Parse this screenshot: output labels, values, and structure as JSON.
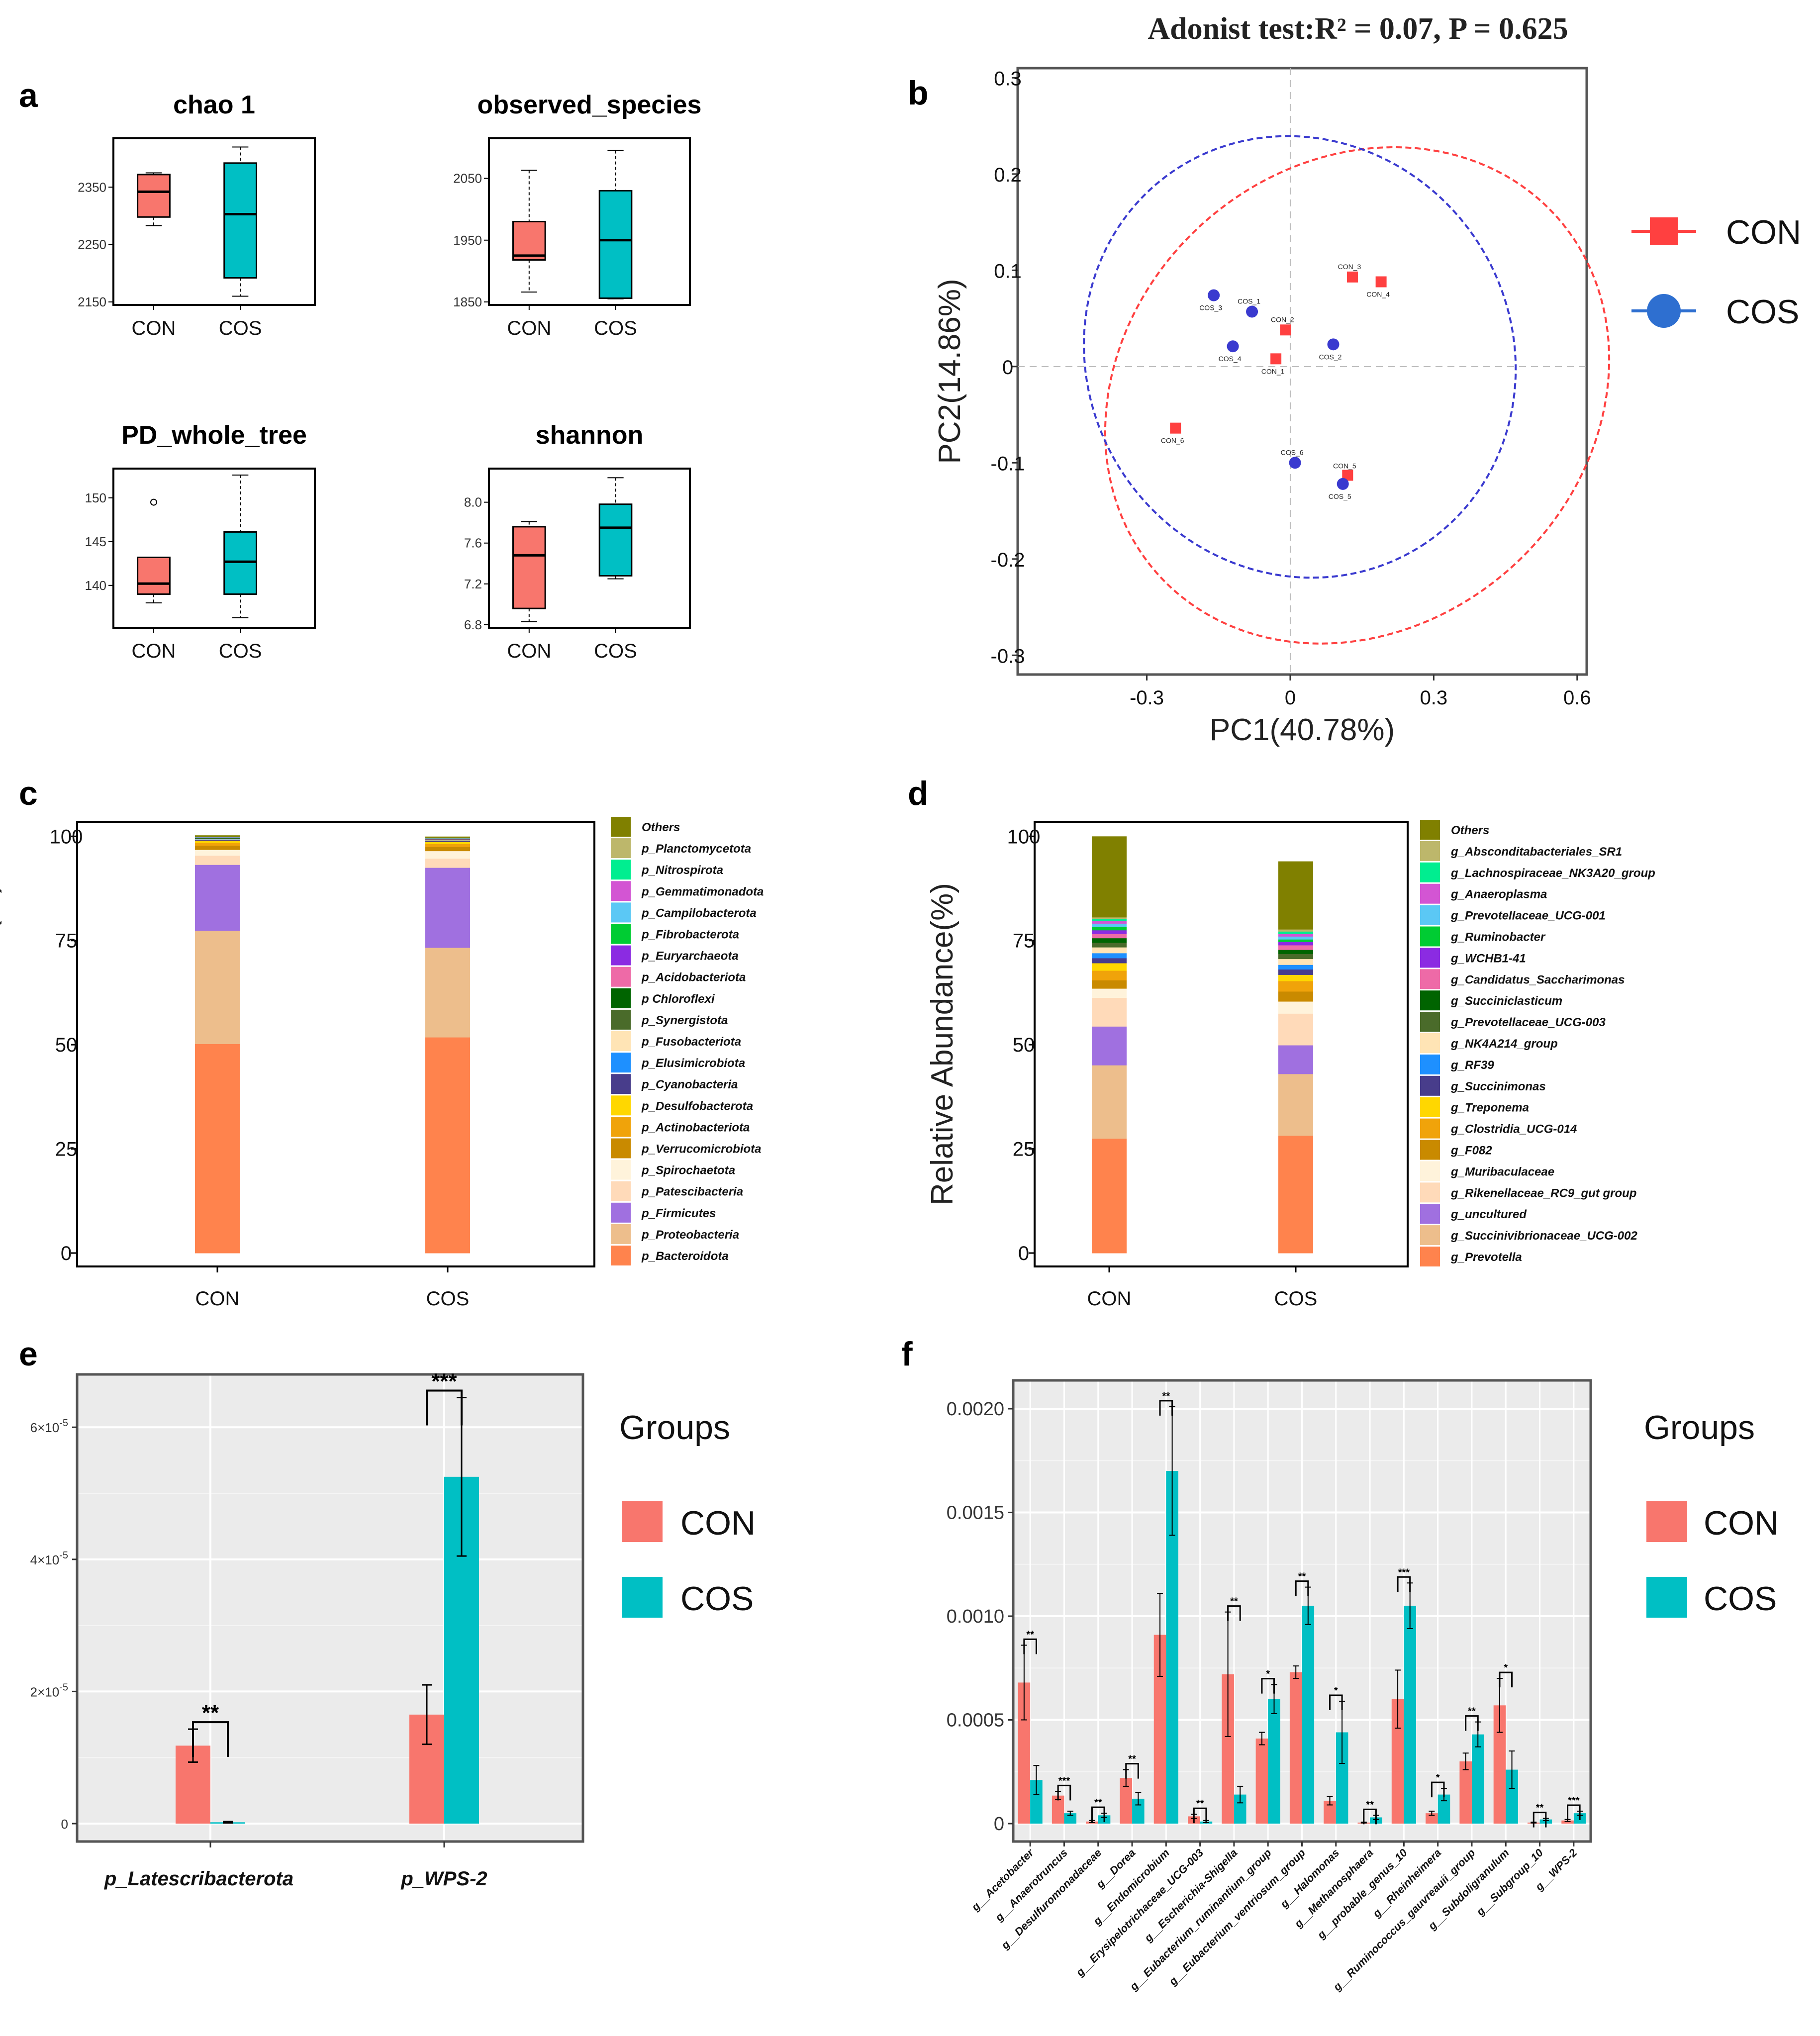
{
  "colors": {
    "con": "#F8766D",
    "cos": "#00BFC4",
    "pcon": "#FF4040",
    "pcos": "#3A3ACF"
  },
  "panels": {
    "a": "a",
    "b": "b",
    "c": "c",
    "d": "d",
    "e": "e",
    "f": "f"
  },
  "chart_data": [
    {
      "id": "a",
      "type": "box",
      "categories": [
        "CON",
        "COS"
      ],
      "subplots": [
        {
          "title": "chao 1",
          "ylim": [
            2150,
            2430
          ],
          "ticks": [
            2150,
            2250,
            2350
          ],
          "tick_labels": [
            "2150",
            "2250",
            "2350"
          ],
          "boxes": [
            {
              "group": "CON",
              "min": 2283,
              "q1": 2298,
              "median": 2342,
              "q3": 2372,
              "max": 2375,
              "outliers": []
            },
            {
              "group": "COS",
              "min": 2160,
              "q1": 2192,
              "median": 2303,
              "q3": 2392,
              "max": 2420,
              "outliers": []
            }
          ]
        },
        {
          "title": "observed_species",
          "ylim": [
            1850,
            2110
          ],
          "ticks": [
            1850,
            1950,
            2050
          ],
          "tick_labels": [
            "1850",
            "1950",
            "2050"
          ],
          "boxes": [
            {
              "group": "CON",
              "min": 1866,
              "q1": 1918,
              "median": 1925,
              "q3": 1980,
              "max": 2063,
              "outliers": []
            },
            {
              "group": "COS",
              "min": 1855,
              "q1": 1856,
              "median": 1950,
              "q3": 2030,
              "max": 2095,
              "outliers": []
            }
          ]
        },
        {
          "title": "PD_whole_tree",
          "ylim": [
            135.5,
            153
          ],
          "ticks": [
            140,
            145,
            150
          ],
          "tick_labels": [
            "140",
            "145",
            "150"
          ],
          "boxes": [
            {
              "group": "CON",
              "min": 138,
              "q1": 139,
              "median": 140.2,
              "q3": 143.2,
              "max": 143.2,
              "outliers": [
                149.5
              ]
            },
            {
              "group": "COS",
              "min": 136.3,
              "q1": 139,
              "median": 142.7,
              "q3": 146.1,
              "max": 152.6,
              "outliers": []
            }
          ]
        },
        {
          "title": "shannon",
          "ylim": [
            6.8,
            8.3
          ],
          "ticks": [
            6.8,
            7.2,
            7.6,
            8.0
          ],
          "tick_labels": [
            "6.8",
            "7.2",
            "7.6",
            "8.0"
          ],
          "boxes": [
            {
              "group": "CON",
              "min": 6.83,
              "q1": 6.96,
              "median": 7.48,
              "q3": 7.76,
              "max": 7.81,
              "outliers": []
            },
            {
              "group": "COS",
              "min": 7.25,
              "q1": 7.28,
              "median": 7.75,
              "q3": 7.98,
              "max": 8.24,
              "outliers": []
            }
          ]
        }
      ]
    },
    {
      "id": "b",
      "type": "scatter",
      "title": "Adonist test:R² = 0.07, P = 0.625",
      "xlabel": "PC1(40.78%)",
      "ylabel": "PC2(14.86%)",
      "xlim": [
        -0.57,
        0.62
      ],
      "ylim": [
        -0.32,
        0.31
      ],
      "xticks": [
        -0.3,
        0,
        0.3,
        0.6
      ],
      "xtick_labels": [
        "-0.3",
        "0",
        "0.3",
        "0.6"
      ],
      "yticks": [
        -0.3,
        -0.2,
        -0.1,
        0,
        0.1,
        0.2,
        0.3
      ],
      "ytick_labels": [
        "-0.3",
        "-0.2",
        "-0.1",
        "0",
        "0.1",
        "0.2",
        "0.3"
      ],
      "legend": [
        "CON",
        "COS"
      ],
      "points": [
        {
          "label": "CON_1",
          "group": "CON",
          "x": -0.03,
          "y": 0.008
        },
        {
          "label": "CON_2",
          "group": "CON",
          "x": -0.01,
          "y": 0.038
        },
        {
          "label": "CON_3",
          "group": "CON",
          "x": 0.13,
          "y": 0.093
        },
        {
          "label": "CON_4",
          "group": "CON",
          "x": 0.19,
          "y": 0.088
        },
        {
          "label": "CON_5",
          "group": "CON",
          "x": 0.12,
          "y": -0.113
        },
        {
          "label": "CON_6",
          "group": "CON",
          "x": -0.24,
          "y": -0.064
        },
        {
          "label": "COS_1",
          "group": "COS",
          "x": -0.08,
          "y": 0.057
        },
        {
          "label": "COS_2",
          "group": "COS",
          "x": 0.09,
          "y": 0.023
        },
        {
          "label": "COS_3",
          "group": "COS",
          "x": -0.16,
          "y": 0.074
        },
        {
          "label": "COS_4",
          "group": "COS",
          "x": -0.12,
          "y": 0.021
        },
        {
          "label": "COS_5",
          "group": "COS",
          "x": 0.11,
          "y": -0.122
        },
        {
          "label": "COS_6",
          "group": "COS",
          "x": 0.01,
          "y": -0.1
        }
      ],
      "ellipses": [
        {
          "group": "CON",
          "cx": 0.14,
          "cy": -0.03,
          "a": 0.56,
          "b": 0.24,
          "angle_deg": 42
        },
        {
          "group": "COS",
          "cx": 0.02,
          "cy": 0.01,
          "a": 0.47,
          "b": 0.22,
          "angle_deg": -56
        }
      ]
    },
    {
      "id": "c",
      "type": "stacked_bar",
      "categories": [
        "CON",
        "COS"
      ],
      "ylabel": "Relative Abundance(%)",
      "ylim": [
        0,
        100
      ],
      "yticks": [
        0,
        25,
        50,
        75,
        100
      ],
      "ytick_labels": [
        "0",
        "25",
        "50",
        "75",
        "100"
      ],
      "legend": [
        "Others",
        "p_Planctomycetota",
        "p_Nitrospirota",
        "p_Gemmatimonadota",
        "p_Campilobacterota",
        "p_Fibrobacterota",
        "p_Euryarchaeota",
        "p_Acidobacteriota",
        "p Chloroflexi",
        "p_Synergistota",
        "p_Fusobacteriota",
        "p_Elusimicrobiota",
        "p_Cyanobacteria",
        "p_Desulfobacterota",
        "p_Actinobacteriota",
        "p_Verrucomicrobiota",
        "p_Spirochaetota",
        "p_Patescibacteria",
        "p_Firmicutes",
        "p_Proteobacteria",
        "p_Bacteroidota"
      ],
      "legend_colors": [
        "#808000",
        "#BDB76B",
        "#00EE90",
        "#D355D3",
        "#5BC8F5",
        "#00CC33",
        "#8B2BE2",
        "#EE6AA7",
        "#006400",
        "#4A6B2A",
        "#FFE4B5",
        "#1E90FF",
        "#483D8B",
        "#FFD700",
        "#F0A30A",
        "#C98A00",
        "#FFF3DB",
        "#FFDAB9",
        "#A070E0",
        "#EDBE8C",
        "#FF834D"
      ],
      "series": [
        {
          "name": "p_Bacteroidota",
          "values": [
            50.2,
            51.8
          ]
        },
        {
          "name": "p_Proteobacteria",
          "values": [
            27.2,
            21.5
          ]
        },
        {
          "name": "p_Firmicutes",
          "values": [
            15.8,
            19.2
          ]
        },
        {
          "name": "p_Patescibacteria",
          "values": [
            2.2,
            2.2
          ]
        },
        {
          "name": "p_Spirochaetota",
          "values": [
            1.4,
            1.8
          ]
        },
        {
          "name": "p_Verrucomicrobiota",
          "values": [
            1.0,
            1.0
          ]
        },
        {
          "name": "p_Actinobacteriota",
          "values": [
            0.7,
            0.7
          ]
        },
        {
          "name": "p_Desulfobacterota",
          "values": [
            0.5,
            0.5
          ]
        },
        {
          "name": "p_Cyanobacteria",
          "values": [
            0.2,
            0.2
          ]
        },
        {
          "name": "p_Elusimicrobiota",
          "values": [
            0.1,
            0.1
          ]
        },
        {
          "name": "p_Fusobacteriota",
          "values": [
            0.1,
            0.1
          ]
        },
        {
          "name": "p_Synergistota",
          "values": [
            0.1,
            0.1
          ]
        },
        {
          "name": "p Chloroflexi",
          "values": [
            0.1,
            0.1
          ]
        },
        {
          "name": "p_Acidobacteriota",
          "values": [
            0.05,
            0.05
          ]
        },
        {
          "name": "p_Euryarchaeota",
          "values": [
            0.05,
            0.05
          ]
        },
        {
          "name": "p_Fibrobacterota",
          "values": [
            0.05,
            0.05
          ]
        },
        {
          "name": "p_Campilobacterota",
          "values": [
            0.05,
            0.05
          ]
        },
        {
          "name": "p_Gemmatimonadota",
          "values": [
            0.05,
            0.05
          ]
        },
        {
          "name": "p_Nitrospirota",
          "values": [
            0.05,
            0.05
          ]
        },
        {
          "name": "p_Planctomycetota",
          "values": [
            0.05,
            0.05
          ]
        },
        {
          "name": "Others",
          "values": [
            0.3,
            0.3
          ]
        }
      ]
    },
    {
      "id": "d",
      "type": "stacked_bar",
      "categories": [
        "CON",
        "COS"
      ],
      "ylabel": "Relative Abundance(%)",
      "ylim": [
        0,
        100
      ],
      "yticks": [
        0,
        25,
        50,
        75,
        100
      ],
      "ytick_labels": [
        "0",
        "25",
        "50",
        "75",
        "100"
      ],
      "legend": [
        "Others",
        "g_Absconditabacteriales_SR1",
        "g_Lachnospiraceae_NK3A20_group",
        "g_Anaeroplasma",
        "g_Prevotellaceae_UCG-001",
        "g_Ruminobacter",
        "g_WCHB1-41",
        "g_Candidatus_Saccharimonas",
        "g_Succiniclasticum",
        "g_Prevotellaceae_UCG-003",
        "g_NK4A214_group",
        "g_RF39",
        "g_Succinimonas",
        "g_Treponema",
        "g_Clostridia_UCG-014",
        "g_F082",
        "g_Muribaculaceae",
        "g_Rikenellaceae_RC9_gut group",
        "g_uncultured",
        "g_Succinivibrionaceae_UCG-002",
        "g_Prevotella"
      ],
      "legend_colors": [
        "#808000",
        "#BDB76B",
        "#00EE90",
        "#D355D3",
        "#5BC8F5",
        "#00CC33",
        "#8B2BE2",
        "#EE6AA7",
        "#006400",
        "#4A6B2A",
        "#FFE4B5",
        "#1E90FF",
        "#483D8B",
        "#FFD700",
        "#F0A30A",
        "#C98A00",
        "#FFF3DB",
        "#FFDAB9",
        "#A070E0",
        "#EDBE8C",
        "#FF834D"
      ],
      "series": [
        {
          "name": "g_Prevotella",
          "values": [
            27.5,
            28.2
          ]
        },
        {
          "name": "g_Succinivibrionaceae_UCG-002",
          "values": [
            17.6,
            14.8
          ]
        },
        {
          "name": "g_uncultured",
          "values": [
            9.3,
            6.9
          ]
        },
        {
          "name": "g_Rikenellaceae_RC9_gut group",
          "values": [
            6.9,
            7.6
          ]
        },
        {
          "name": "g_Muribaculaceae",
          "values": [
            2.2,
            2.9
          ]
        },
        {
          "name": "g_F082",
          "values": [
            2.0,
            2.4
          ]
        },
        {
          "name": "g_Clostridia_UCG-014",
          "values": [
            2.3,
            2.5
          ]
        },
        {
          "name": "g_Treponema",
          "values": [
            1.8,
            1.5
          ]
        },
        {
          "name": "g_Succinimonas",
          "values": [
            1.2,
            1.3
          ]
        },
        {
          "name": "g_RF39",
          "values": [
            1.2,
            1.1
          ]
        },
        {
          "name": "g_NK4A214_group",
          "values": [
            1.4,
            1.4
          ]
        },
        {
          "name": "g_Prevotellaceae_UCG-003",
          "values": [
            1.1,
            1.2
          ]
        },
        {
          "name": "g_Succiniclasticum",
          "values": [
            1.1,
            1.0
          ]
        },
        {
          "name": "g_Candidatus_Saccharimonas",
          "values": [
            1.0,
            1.1
          ]
        },
        {
          "name": "g_WCHB1-41",
          "values": [
            0.9,
            0.8
          ]
        },
        {
          "name": "g_Ruminobacter",
          "values": [
            0.8,
            0.6
          ]
        },
        {
          "name": "g_Prevotellaceae_UCG-001",
          "values": [
            0.8,
            0.7
          ]
        },
        {
          "name": "g_Anaeroplasma",
          "values": [
            0.6,
            0.6
          ]
        },
        {
          "name": "g_Lachnospiraceae_NK3A20_group",
          "values": [
            0.5,
            0.6
          ]
        },
        {
          "name": "g_Absconditabacteriales_SR1",
          "values": [
            0.4,
            0.5
          ]
        },
        {
          "name": "Others",
          "values": [
            19.4,
            16.3
          ]
        }
      ]
    },
    {
      "id": "e",
      "type": "bar",
      "categories": [
        "p_Latescribacterota",
        "p_WPS-2"
      ],
      "ylim": [
        0,
        6.8e-05
      ],
      "yticks": [
        0,
        2e-05,
        4e-05,
        6e-05
      ],
      "ytick_labels": [
        {
          "mant": "0",
          "exp": ""
        },
        {
          "mant": "2×10",
          "exp": "-5"
        },
        {
          "mant": "4×10",
          "exp": "-5"
        },
        {
          "mant": "6×10",
          "exp": "-5"
        }
      ],
      "legend_title": "Groups",
      "legend": [
        "CON",
        "COS"
      ],
      "series": [
        {
          "name": "CON",
          "values": [
            1.18e-05,
            1.65e-05
          ],
          "err": [
            2.5e-06,
            4.5e-06
          ]
        },
        {
          "name": "COS",
          "values": [
            2e-07,
            5.25e-05
          ],
          "err": [
            1e-07,
            1.2e-05
          ]
        }
      ],
      "significance": [
        "**",
        "***"
      ]
    },
    {
      "id": "f",
      "type": "bar",
      "categories": [
        "g__Acetobacter",
        "g__Anaerotruncus",
        "g__Desulfuromonadaceae",
        "g__Dorea",
        "g__Endomicrobium",
        "g__Erysipelotrichaceae_UCG-003",
        "g__Escherichia-Shigella",
        "g__Eubacterium_ruminantium_group",
        "g__Eubacterium_ventriosum_group",
        "g__Halomonas",
        "g__Methanosphaera",
        "g__probable_genus_10",
        "g__Rheinheimera",
        "g__Ruminococcus_gauvreauii_group",
        "g__Subdoligranulum",
        "g__Subgroup_10",
        "g__WPS-2"
      ],
      "ylim": [
        -5e-05,
        0.00215
      ],
      "yticks": [
        0,
        0.0005,
        0.001,
        0.0015,
        0.002
      ],
      "ytick_labels": [
        "0",
        "0.0005",
        "0.0010",
        "0.0015",
        "0.0020"
      ],
      "legend_title": "Groups",
      "legend": [
        "CON",
        "COS"
      ],
      "series": [
        {
          "name": "CON",
          "values": [
            0.00068,
            0.000135,
            1e-05,
            0.00022,
            0.00091,
            3.5e-05,
            0.00072,
            0.00041,
            0.00073,
            0.00011,
            5e-06,
            0.0006,
            5e-05,
            0.0003,
            0.00057,
            5e-06,
            1.5e-05
          ],
          "err": [
            0.00018,
            2e-05,
            5e-06,
            4e-05,
            0.0002,
            1e-05,
            0.0003,
            3e-05,
            3e-05,
            2e-05,
            2e-06,
            0.00014,
            1e-05,
            4e-05,
            0.00013,
            2e-06,
            5e-06
          ]
        },
        {
          "name": "COS",
          "values": [
            0.00021,
            5e-05,
            4e-05,
            0.00012,
            0.0017,
            1e-05,
            0.00014,
            0.0006,
            0.00105,
            0.00044,
            3e-05,
            0.00105,
            0.00014,
            0.00043,
            0.00026,
            2e-05,
            5e-05
          ]
        }
      ],
      "cos_err": [
        7e-05,
        1e-05,
        1e-05,
        3e-05,
        0.00031,
        5e-06,
        4e-05,
        7e-05,
        9e-05,
        0.00015,
        1e-05,
        0.00011,
        3e-05,
        6e-05,
        9e-05,
        5e-06,
        1e-05
      ],
      "significance": [
        "**",
        "***",
        "**",
        "**",
        "**",
        "**",
        "**",
        "*",
        "**",
        "*",
        "**",
        "***",
        "*",
        "**",
        "*",
        "**",
        "***"
      ]
    }
  ]
}
